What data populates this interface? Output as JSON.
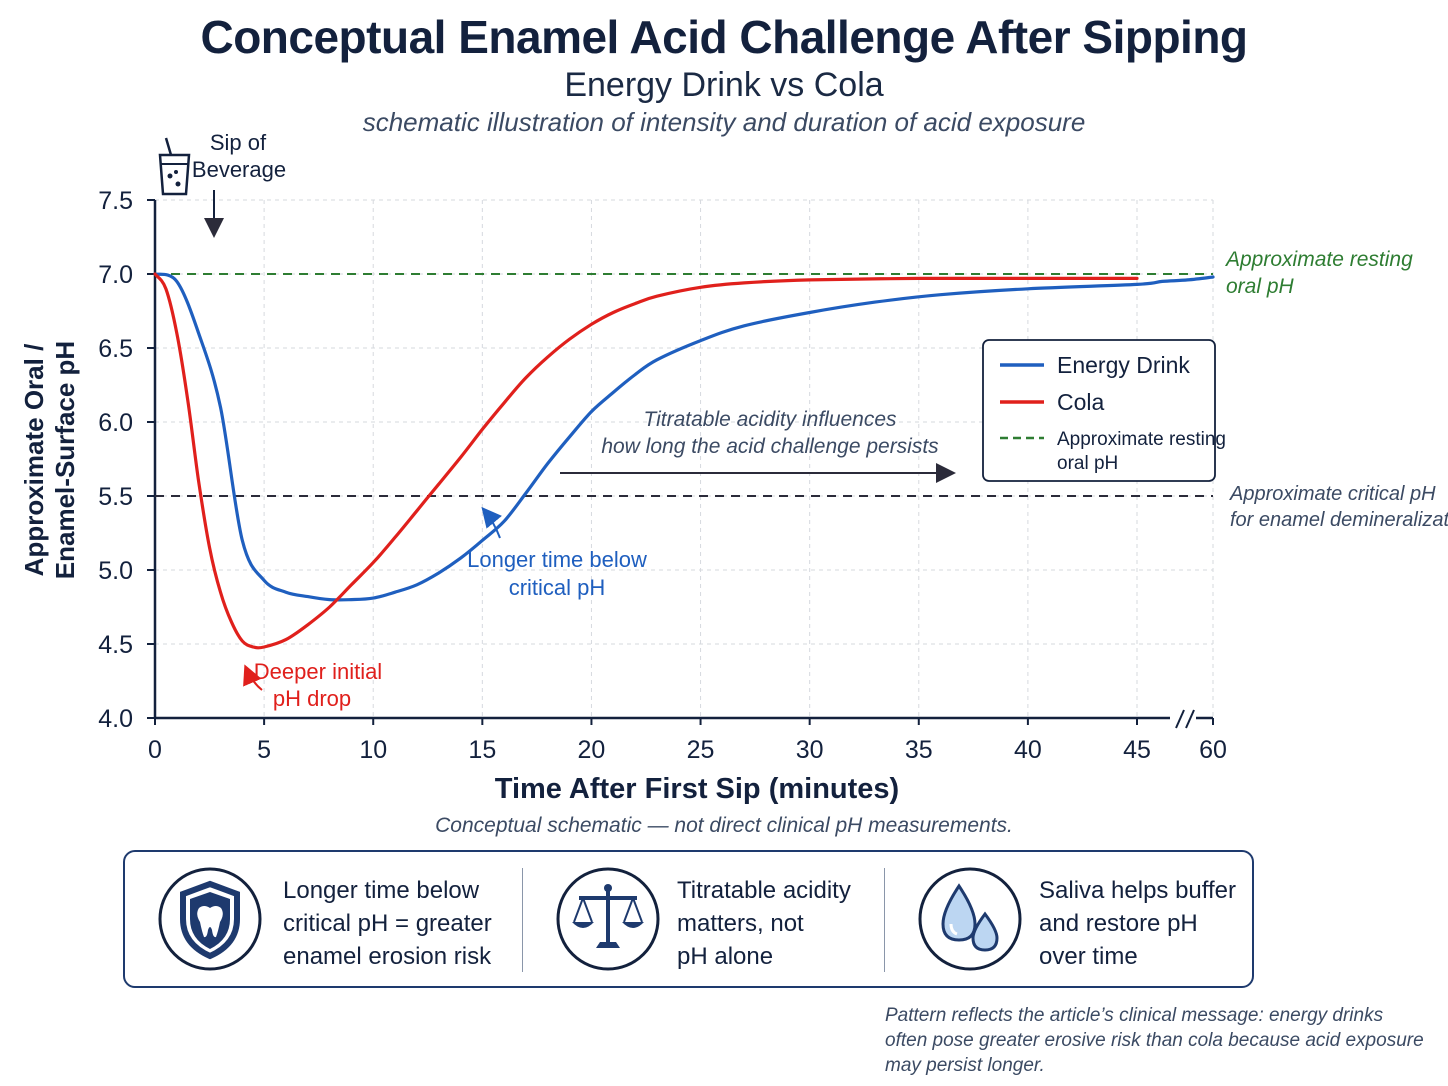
{
  "header": {
    "title": "Conceptual Enamel Acid Challenge After Sipping",
    "subtitle": "Energy Drink vs Cola",
    "caption": "schematic illustration of intensity and duration of acid exposure"
  },
  "chart_data": {
    "type": "line",
    "xlabel": "Time After First Sip (minutes)",
    "ylabel_lines": [
      "Approximate Oral /",
      "Enamel-Surface pH"
    ],
    "ylim": [
      4.0,
      7.5
    ],
    "yticks": [
      "4.0",
      "4.5",
      "5.0",
      "5.5",
      "6.0",
      "6.5",
      "7.0",
      "7.5"
    ],
    "xticks": [
      "0",
      "5",
      "10",
      "15",
      "20",
      "25",
      "30",
      "35",
      "40",
      "45",
      "60"
    ],
    "x_axis_break": "between 45 and 60 minutes",
    "grid": true,
    "legend_position": "right",
    "series": [
      {
        "name": "Energy Drink",
        "color": "#1f5fbf",
        "points": [
          [
            0,
            7.0
          ],
          [
            1,
            6.95
          ],
          [
            2,
            6.6
          ],
          [
            3,
            6.1
          ],
          [
            4,
            5.2
          ],
          [
            5,
            4.93
          ],
          [
            6,
            4.85
          ],
          [
            7,
            4.82
          ],
          [
            8,
            4.8
          ],
          [
            9,
            4.8
          ],
          [
            10,
            4.81
          ],
          [
            11,
            4.85
          ],
          [
            12,
            4.9
          ],
          [
            13,
            4.98
          ],
          [
            14,
            5.08
          ],
          [
            15,
            5.2
          ],
          [
            16,
            5.33
          ],
          [
            17,
            5.52
          ],
          [
            18,
            5.72
          ],
          [
            19,
            5.9
          ],
          [
            20,
            6.07
          ],
          [
            21,
            6.2
          ],
          [
            22,
            6.32
          ],
          [
            23,
            6.42
          ],
          [
            25,
            6.55
          ],
          [
            27,
            6.65
          ],
          [
            30,
            6.74
          ],
          [
            33,
            6.81
          ],
          [
            36,
            6.86
          ],
          [
            40,
            6.9
          ],
          [
            45,
            6.93
          ],
          [
            50,
            6.95
          ],
          [
            55,
            6.96
          ],
          [
            60,
            6.98
          ]
        ]
      },
      {
        "name": "Cola",
        "color": "#e0201c",
        "points": [
          [
            0,
            7.0
          ],
          [
            0.5,
            6.9
          ],
          [
            1,
            6.6
          ],
          [
            1.5,
            6.15
          ],
          [
            2,
            5.6
          ],
          [
            2.5,
            5.15
          ],
          [
            3,
            4.85
          ],
          [
            3.5,
            4.65
          ],
          [
            4,
            4.52
          ],
          [
            4.5,
            4.48
          ],
          [
            5,
            4.48
          ],
          [
            6,
            4.53
          ],
          [
            7,
            4.63
          ],
          [
            8,
            4.75
          ],
          [
            9,
            4.9
          ],
          [
            10,
            5.05
          ],
          [
            11,
            5.22
          ],
          [
            12,
            5.4
          ],
          [
            13,
            5.58
          ],
          [
            14,
            5.76
          ],
          [
            15,
            5.95
          ],
          [
            16,
            6.13
          ],
          [
            17,
            6.3
          ],
          [
            18,
            6.44
          ],
          [
            19,
            6.56
          ],
          [
            20,
            6.66
          ],
          [
            21,
            6.74
          ],
          [
            22,
            6.8
          ],
          [
            23,
            6.85
          ],
          [
            25,
            6.91
          ],
          [
            27,
            6.94
          ],
          [
            30,
            6.96
          ],
          [
            35,
            6.97
          ],
          [
            40,
            6.97
          ],
          [
            45,
            6.97
          ]
        ]
      }
    ],
    "reference_lines": [
      {
        "name": "Approximate resting oral pH",
        "y": 7.0,
        "color": "#2e7d32",
        "label": [
          "Approximate resting",
          "oral pH"
        ]
      },
      {
        "name": "Approximate critical pH for enamel demineralization",
        "y": 5.5,
        "color": "#2b2b3a",
        "label": [
          "Approximate critical pH",
          "for enamel demineralization"
        ]
      }
    ],
    "legend": [
      {
        "label": "Energy Drink",
        "style": "solid",
        "color": "#1f5fbf"
      },
      {
        "label": "Cola",
        "style": "solid",
        "color": "#e0201c"
      },
      {
        "label": [
          "Approximate resting",
          "oral pH"
        ],
        "style": "dashed",
        "color": "#2e7d32"
      }
    ],
    "annotations": {
      "sip": [
        "Sip of",
        "Beverage"
      ],
      "cola_drop": [
        "Deeper initial",
        "pH drop"
      ],
      "energy_time": [
        "Longer time below",
        "critical pH"
      ],
      "titratable": [
        "Titratable acidity influences",
        "how long the acid challenge persists"
      ]
    }
  },
  "note": "Conceptual schematic — not direct clinical pH measurements.",
  "info_panel": [
    {
      "icon": "tooth-shield-icon",
      "lines": [
        "Longer time below",
        "critical pH = greater",
        "enamel erosion risk"
      ]
    },
    {
      "icon": "balance-scale-icon",
      "lines": [
        "Titratable acidity",
        "matters, not",
        "pH alone"
      ]
    },
    {
      "icon": "saliva-drops-icon",
      "lines": [
        "Saliva helps buffer",
        "and restore pH",
        "over time"
      ]
    }
  ],
  "footnote": "Pattern reflects the article’s clinical message: energy drinks often pose greater erosive risk than cola because acid exposure may persist longer."
}
